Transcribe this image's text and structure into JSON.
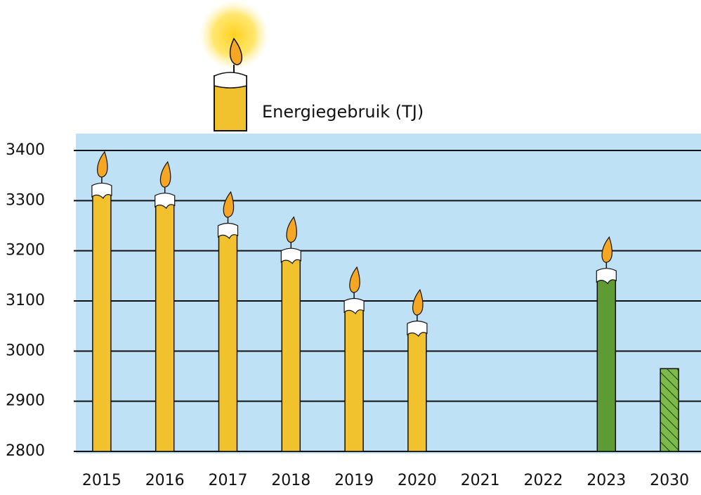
{
  "chart_data": {
    "type": "bar",
    "title": "Energiegebruik (TJ)",
    "categories": [
      "2015",
      "2016",
      "2017",
      "2018",
      "2019",
      "2020",
      "2021",
      "2022",
      "2023",
      "2030"
    ],
    "values": [
      3330,
      3310,
      3250,
      3200,
      3100,
      3055,
      null,
      null,
      3160,
      2965
    ],
    "colors": [
      "#f2c12e",
      "#f2c12e",
      "#f2c12e",
      "#f2c12e",
      "#f2c12e",
      "#f2c12e",
      null,
      null,
      "#5e9b34",
      "#7cbb4a"
    ],
    "hatched": [
      false,
      false,
      false,
      false,
      false,
      false,
      false,
      false,
      false,
      true
    ],
    "ylim": [
      2800,
      3400
    ],
    "yticks": [
      2800,
      2900,
      3000,
      3100,
      3200,
      3300,
      3400
    ],
    "grid": true
  }
}
